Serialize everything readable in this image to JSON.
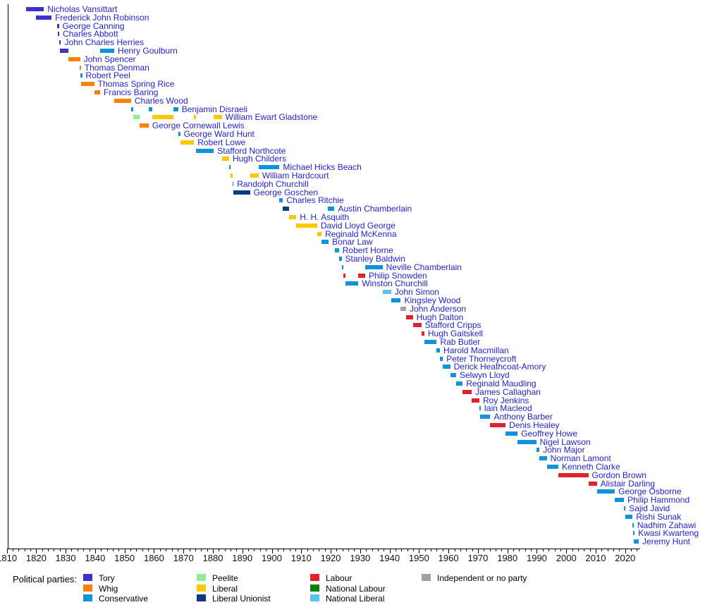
{
  "chart_data": {
    "type": "timeline",
    "subject": "Chancellors of the Exchequer by political party",
    "axis": {
      "start": 1810,
      "end": 2025,
      "minor_tick_every": 2,
      "major_tick_every": 10,
      "tick_labels": [
        "1810",
        "1820",
        "1830",
        "1840",
        "1850",
        "1860",
        "1870",
        "1880",
        "1890",
        "1900",
        "1910",
        "1920",
        "1930",
        "1940",
        "1950",
        "1960",
        "1970",
        "1980",
        "1990",
        "2000",
        "2010",
        "2020"
      ]
    },
    "parties": {
      "tory": {
        "label": "Tory",
        "color": "#3d33c6"
      },
      "whig": {
        "label": "Whig",
        "color": "#f8820b"
      },
      "con": {
        "label": "Conservative",
        "color": "#0f94dc"
      },
      "peelite": {
        "label": "Peelite",
        "color": "#90ee90"
      },
      "lib": {
        "label": "Liberal",
        "color": "#fdc800"
      },
      "libu": {
        "label": "Liberal Unionist",
        "color": "#0e3a85"
      },
      "lab": {
        "label": "Labour",
        "color": "#dc232e"
      },
      "natlab": {
        "label": "National Labour",
        "color": "#048104"
      },
      "natlib": {
        "label": "National Liberal",
        "color": "#58c2f2"
      },
      "ind": {
        "label": "Independent or no party",
        "color": "#a1a1a1"
      }
    },
    "legend": {
      "title": "Political parties:",
      "columns": [
        [
          "tory",
          "whig",
          "con"
        ],
        [
          "peelite",
          "lib",
          "libu"
        ],
        [
          "lab",
          "natlab",
          "natlib"
        ],
        [
          "ind"
        ]
      ]
    },
    "people": [
      {
        "name": "Nicholas Vansittart",
        "segments": [
          {
            "start": 1816.6,
            "end": 1822.6,
            "party": "tory"
          }
        ]
      },
      {
        "name": "Frederick John Robinson",
        "segments": [
          {
            "start": 1819.9,
            "end": 1825.2,
            "party": "tory"
          }
        ]
      },
      {
        "name": "George Canning",
        "segments": [
          {
            "start": 1827.2,
            "end": 1827.7,
            "party": "tory"
          }
        ]
      },
      {
        "name": "Charles Abbott",
        "segments": [
          {
            "start": 1827.4,
            "end": 1827.8,
            "party": "tory"
          }
        ]
      },
      {
        "name": "John Charles Herries",
        "segments": [
          {
            "start": 1827.8,
            "end": 1828.4,
            "party": "tory"
          }
        ]
      },
      {
        "name": "Henry Goulburn",
        "segments": [
          {
            "start": 1828.1,
            "end": 1830.9,
            "party": "tory"
          },
          {
            "start": 1841.7,
            "end": 1846.5,
            "party": "con"
          }
        ]
      },
      {
        "name": "John Spencer",
        "segments": [
          {
            "start": 1830.9,
            "end": 1834.9,
            "party": "whig"
          }
        ]
      },
      {
        "name": "Thomas Denman",
        "segments": [
          {
            "start": 1834.8,
            "end": 1835.1,
            "party": "whig"
          }
        ]
      },
      {
        "name": "Robert Peel",
        "segments": [
          {
            "start": 1835.1,
            "end": 1835.6,
            "party": "con"
          }
        ]
      },
      {
        "name": "Thomas Spring Rice",
        "segments": [
          {
            "start": 1835.3,
            "end": 1839.7,
            "party": "whig"
          }
        ]
      },
      {
        "name": "Francis Baring",
        "segments": [
          {
            "start": 1839.7,
            "end": 1841.7,
            "party": "whig"
          }
        ]
      },
      {
        "name": "Charles Wood",
        "segments": [
          {
            "start": 1846.5,
            "end": 1852.2,
            "party": "whig"
          }
        ]
      },
      {
        "name": "Benjamin Disraeli",
        "segments": [
          {
            "start": 1852.2,
            "end": 1853.0,
            "party": "con"
          },
          {
            "start": 1858.2,
            "end": 1859.5,
            "party": "con"
          },
          {
            "start": 1866.5,
            "end": 1868.2,
            "party": "con"
          }
        ]
      },
      {
        "name": "William Ewart Gladstone",
        "segments": [
          {
            "start": 1853.0,
            "end": 1855.2,
            "party": "peelite"
          },
          {
            "start": 1859.5,
            "end": 1866.5,
            "party": "lib"
          },
          {
            "start": 1873.6,
            "end": 1874.2,
            "party": "lib"
          },
          {
            "start": 1880.3,
            "end": 1883.0,
            "party": "lib"
          }
        ]
      },
      {
        "name": "George Cornewall Lewis",
        "segments": [
          {
            "start": 1855.2,
            "end": 1858.2,
            "party": "whig"
          }
        ]
      },
      {
        "name": "George Ward Hunt",
        "segments": [
          {
            "start": 1868.2,
            "end": 1868.9,
            "party": "con"
          }
        ]
      },
      {
        "name": "Robert Lowe",
        "segments": [
          {
            "start": 1868.9,
            "end": 1873.6,
            "party": "lib"
          }
        ]
      },
      {
        "name": "Stafford Northcote",
        "segments": [
          {
            "start": 1874.2,
            "end": 1880.3,
            "party": "con"
          }
        ]
      },
      {
        "name": "Hugh Childers",
        "segments": [
          {
            "start": 1883.0,
            "end": 1885.5,
            "party": "lib"
          }
        ]
      },
      {
        "name": "Michael Hicks Beach",
        "segments": [
          {
            "start": 1885.5,
            "end": 1886.1,
            "party": "con"
          },
          {
            "start": 1895.5,
            "end": 1902.6,
            "party": "con"
          }
        ]
      },
      {
        "name": "William Hardcourt",
        "segments": [
          {
            "start": 1886.1,
            "end": 1886.6,
            "party": "lib"
          },
          {
            "start": 1892.6,
            "end": 1895.5,
            "party": "lib"
          }
        ]
      },
      {
        "name": "Randolph Churchill",
        "segments": [
          {
            "start": 1886.6,
            "end": 1887.0,
            "party": "con"
          }
        ]
      },
      {
        "name": "George Goschen",
        "segments": [
          {
            "start": 1887.0,
            "end": 1892.6,
            "party": "libu"
          }
        ]
      },
      {
        "name": "Charles Ritchie",
        "segments": [
          {
            "start": 1902.6,
            "end": 1903.8,
            "party": "con"
          }
        ]
      },
      {
        "name": "Austin Chamberlain",
        "segments": [
          {
            "start": 1903.8,
            "end": 1905.9,
            "party": "libu"
          },
          {
            "start": 1919.0,
            "end": 1921.3,
            "party": "con"
          }
        ]
      },
      {
        "name": "H. H. Asquith",
        "segments": [
          {
            "start": 1905.9,
            "end": 1908.3,
            "party": "lib"
          }
        ]
      },
      {
        "name": "David Lloyd George",
        "segments": [
          {
            "start": 1908.3,
            "end": 1915.4,
            "party": "lib"
          }
        ]
      },
      {
        "name": "Reginald McKenna",
        "segments": [
          {
            "start": 1915.4,
            "end": 1916.9,
            "party": "lib"
          }
        ]
      },
      {
        "name": "Bonar Law",
        "segments": [
          {
            "start": 1916.9,
            "end": 1919.3,
            "party": "con"
          }
        ]
      },
      {
        "name": "Robert Horne",
        "segments": [
          {
            "start": 1921.3,
            "end": 1922.8,
            "party": "con"
          }
        ]
      },
      {
        "name": "Stanley Baldwin",
        "segments": [
          {
            "start": 1922.8,
            "end": 1923.7,
            "party": "con"
          }
        ]
      },
      {
        "name": "Neville Chamberlain",
        "segments": [
          {
            "start": 1923.7,
            "end": 1924.2,
            "party": "con"
          },
          {
            "start": 1931.7,
            "end": 1937.6,
            "party": "con"
          }
        ]
      },
      {
        "name": "Philip Snowden",
        "segments": [
          {
            "start": 1924.2,
            "end": 1924.9,
            "party": "lab"
          },
          {
            "start": 1929.4,
            "end": 1931.7,
            "party": "lab"
          }
        ]
      },
      {
        "name": "Winston Churchill",
        "segments": [
          {
            "start": 1924.9,
            "end": 1929.4,
            "party": "con"
          }
        ]
      },
      {
        "name": "John Simon",
        "segments": [
          {
            "start": 1937.6,
            "end": 1940.5,
            "party": "natlib"
          }
        ]
      },
      {
        "name": "Kingsley Wood",
        "segments": [
          {
            "start": 1940.5,
            "end": 1943.8,
            "party": "con"
          }
        ]
      },
      {
        "name": "John Anderson",
        "segments": [
          {
            "start": 1943.8,
            "end": 1945.6,
            "party": "ind"
          }
        ]
      },
      {
        "name": "Hugh Dalton",
        "segments": [
          {
            "start": 1945.6,
            "end": 1947.9,
            "party": "lab"
          }
        ]
      },
      {
        "name": "Stafford Cripps",
        "segments": [
          {
            "start": 1947.9,
            "end": 1950.8,
            "party": "lab"
          }
        ]
      },
      {
        "name": "Hugh Gaitskell",
        "segments": [
          {
            "start": 1950.8,
            "end": 1951.8,
            "party": "lab"
          }
        ]
      },
      {
        "name": "Rab Butler",
        "segments": [
          {
            "start": 1951.8,
            "end": 1956.0,
            "party": "con"
          }
        ]
      },
      {
        "name": "Harold Macmillan",
        "segments": [
          {
            "start": 1956.0,
            "end": 1957.1,
            "party": "con"
          }
        ]
      },
      {
        "name": "Peter Thorneycroft",
        "segments": [
          {
            "start": 1957.1,
            "end": 1958.1,
            "party": "con"
          }
        ]
      },
      {
        "name": "Derick Heathcoat-Amory",
        "segments": [
          {
            "start": 1958.1,
            "end": 1960.6,
            "party": "con"
          }
        ]
      },
      {
        "name": "Selwyn Lloyd",
        "segments": [
          {
            "start": 1960.6,
            "end": 1962.6,
            "party": "con"
          }
        ]
      },
      {
        "name": "Reginald Maudling",
        "segments": [
          {
            "start": 1962.6,
            "end": 1964.8,
            "party": "con"
          }
        ]
      },
      {
        "name": "James Callaghan",
        "segments": [
          {
            "start": 1964.8,
            "end": 1967.9,
            "party": "lab"
          }
        ]
      },
      {
        "name": "Roy Jenkins",
        "segments": [
          {
            "start": 1967.9,
            "end": 1970.5,
            "party": "lab"
          }
        ]
      },
      {
        "name": "Iain Macleod",
        "segments": [
          {
            "start": 1970.5,
            "end": 1970.7,
            "party": "con"
          }
        ]
      },
      {
        "name": "Anthony Barber",
        "segments": [
          {
            "start": 1970.7,
            "end": 1974.2,
            "party": "con"
          }
        ]
      },
      {
        "name": "Denis Healey",
        "segments": [
          {
            "start": 1974.2,
            "end": 1979.4,
            "party": "lab"
          }
        ]
      },
      {
        "name": "Geoffrey Howe",
        "segments": [
          {
            "start": 1979.4,
            "end": 1983.5,
            "party": "con"
          }
        ]
      },
      {
        "name": "Nigel Lawson",
        "segments": [
          {
            "start": 1983.5,
            "end": 1989.8,
            "party": "con"
          }
        ]
      },
      {
        "name": "John Major",
        "segments": [
          {
            "start": 1989.8,
            "end": 1990.9,
            "party": "con"
          }
        ]
      },
      {
        "name": "Norman Lamont",
        "segments": [
          {
            "start": 1990.9,
            "end": 1993.4,
            "party": "con"
          }
        ]
      },
      {
        "name": "Kenneth Clarke",
        "segments": [
          {
            "start": 1993.4,
            "end": 1997.3,
            "party": "con"
          }
        ]
      },
      {
        "name": "Gordon Brown",
        "segments": [
          {
            "start": 1997.3,
            "end": 2007.5,
            "party": "lab"
          }
        ]
      },
      {
        "name": "Alistair Darling",
        "segments": [
          {
            "start": 2007.5,
            "end": 2010.4,
            "party": "lab"
          }
        ]
      },
      {
        "name": "George Osborne",
        "segments": [
          {
            "start": 2010.4,
            "end": 2016.5,
            "party": "con"
          }
        ]
      },
      {
        "name": "Philip Hammond",
        "segments": [
          {
            "start": 2016.5,
            "end": 2019.6,
            "party": "con"
          }
        ]
      },
      {
        "name": "Sajid Javid",
        "segments": [
          {
            "start": 2019.6,
            "end": 2020.1,
            "party": "con"
          }
        ]
      },
      {
        "name": "Rishi Sunak",
        "segments": [
          {
            "start": 2020.1,
            "end": 2022.5,
            "party": "con"
          }
        ]
      },
      {
        "name": "Nadhim Zahawi",
        "segments": [
          {
            "start": 2022.5,
            "end": 2022.8,
            "party": "con"
          }
        ]
      },
      {
        "name": "Kwasi Kwarteng",
        "segments": [
          {
            "start": 2022.8,
            "end": 2022.95,
            "party": "con"
          }
        ]
      },
      {
        "name": "Jeremy Hunt",
        "segments": [
          {
            "start": 2022.95,
            "end": 2024.6,
            "party": "con"
          }
        ]
      }
    ]
  }
}
